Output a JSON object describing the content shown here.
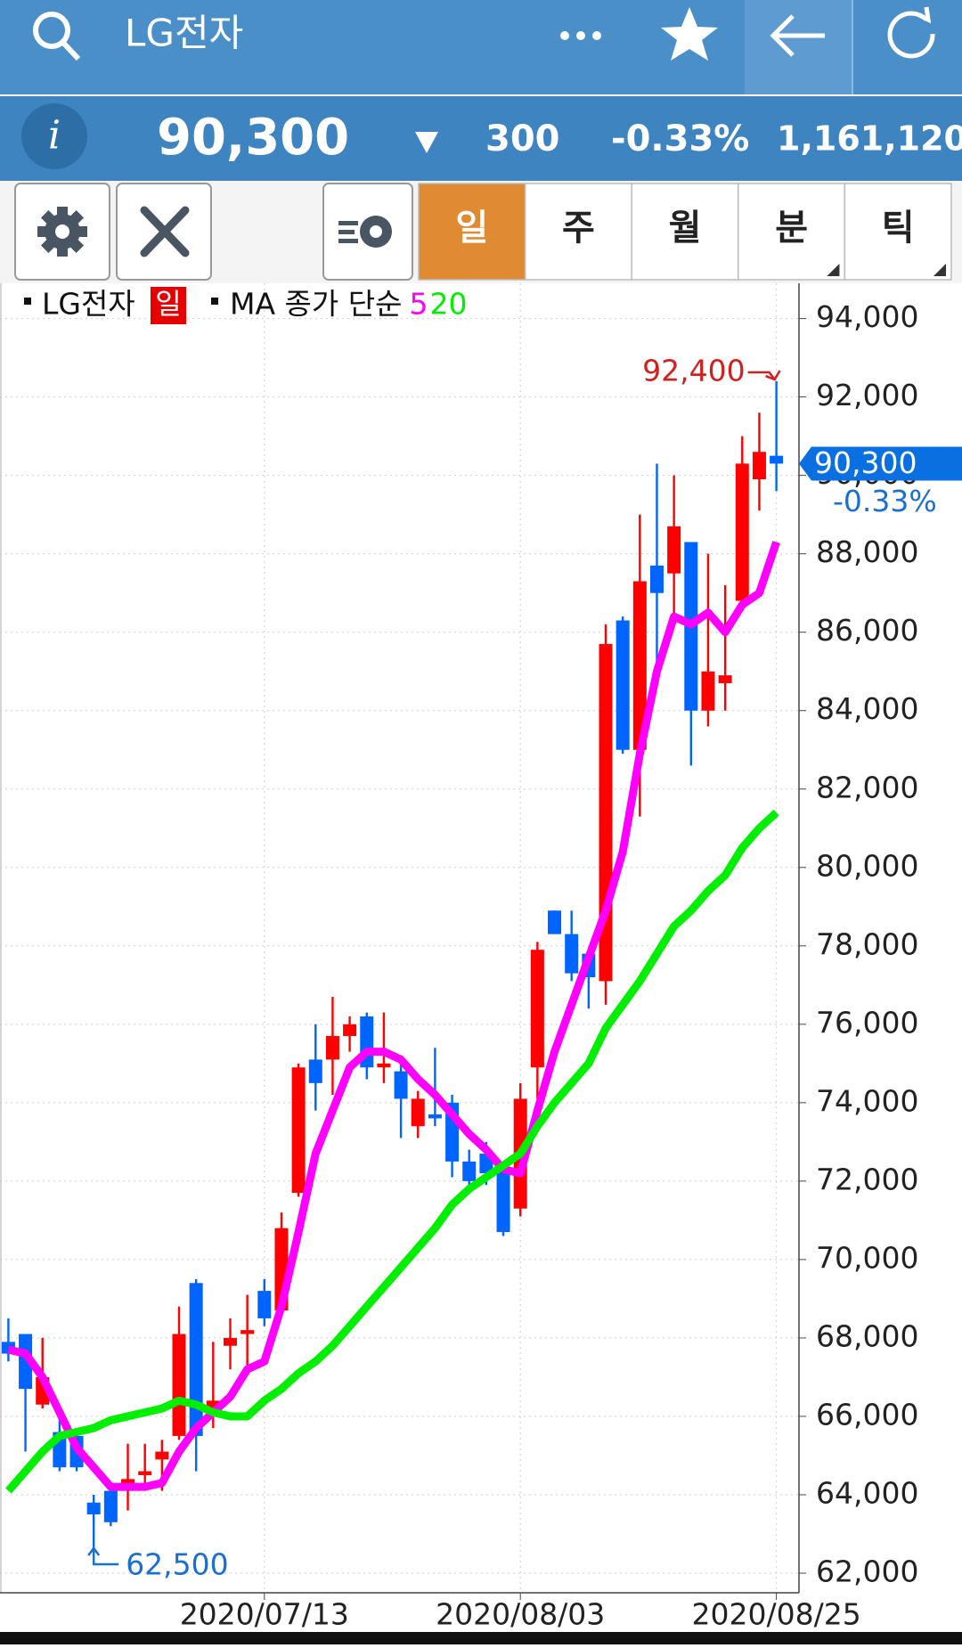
{
  "header": {
    "title": "LG전자"
  },
  "quote": {
    "price": "90,300",
    "change": "300",
    "change_pct": "-0.33%",
    "volume": "1,161,120"
  },
  "tabs": [
    "일",
    "주",
    "월",
    "분",
    "틱"
  ],
  "chart_data": {
    "type": "candlestick",
    "legend_name": "LG전자",
    "period_badge": "일",
    "ma_label": "MA 종가 단순",
    "x": [
      null,
      null,
      null,
      null,
      null,
      null,
      null,
      null,
      null,
      null,
      null,
      null,
      null,
      null,
      null,
      "2020/07/13",
      null,
      null,
      null,
      null,
      null,
      null,
      null,
      null,
      null,
      null,
      null,
      null,
      null,
      null,
      "2020/08/03",
      null,
      null,
      null,
      null,
      null,
      null,
      null,
      null,
      null,
      null,
      null,
      null,
      null,
      null,
      "2020/08/25"
    ],
    "open": [
      67900,
      68100,
      66300,
      65600,
      65500,
      63800,
      64100,
      64100,
      64500,
      64900,
      65500,
      69400,
      66200,
      67800,
      68100,
      69200,
      68700,
      71700,
      75100,
      75100,
      75700,
      76200,
      74900,
      74800,
      73400,
      73700,
      74000,
      72500,
      72700,
      72300,
      71300,
      74900,
      78900,
      78300,
      77800,
      77100,
      86300,
      83000,
      87700,
      87500,
      88300,
      84000,
      84700,
      86800,
      89900,
      90500
    ],
    "high": [
      68500,
      68100,
      68000,
      66000,
      65600,
      64000,
      64100,
      65300,
      65300,
      65400,
      68800,
      69500,
      67900,
      68500,
      69100,
      69500,
      71200,
      75000,
      76000,
      76700,
      76200,
      76300,
      76300,
      75100,
      74300,
      75400,
      74200,
      72800,
      73000,
      72500,
      74500,
      78100,
      78900,
      78900,
      77900,
      86200,
      86400,
      89000,
      90300,
      90000,
      88300,
      88000,
      87200,
      91000,
      91600,
      92400
    ],
    "low": [
      67400,
      65100,
      66200,
      64600,
      64600,
      62500,
      63200,
      63600,
      64100,
      64100,
      65400,
      64600,
      65700,
      67200,
      67300,
      68300,
      68700,
      71600,
      73800,
      74200,
      75300,
      74600,
      74500,
      73100,
      73100,
      73400,
      72100,
      71900,
      71900,
      70600,
      71100,
      74100,
      78300,
      77100,
      76400,
      76500,
      82900,
      81300,
      85000,
      86400,
      82600,
      83600,
      84000,
      86700,
      89100,
      89600
    ],
    "close": [
      67600,
      66700,
      67000,
      64700,
      64700,
      63500,
      63300,
      64400,
      64600,
      65100,
      68100,
      65500,
      66400,
      68000,
      68200,
      68500,
      70800,
      74900,
      74500,
      75700,
      76000,
      74900,
      75000,
      74100,
      74100,
      73600,
      72500,
      72000,
      72200,
      70700,
      74100,
      77900,
      78300,
      77300,
      77200,
      85700,
      83000,
      87300,
      87000,
      88700,
      84000,
      85000,
      84900,
      90300,
      90600,
      90300
    ],
    "up_color": "#ff0000",
    "down_color": "#0064ff",
    "series": [
      {
        "name": "5",
        "color": "#ff00ff",
        "values": [
          67700,
          67600,
          67000,
          66100,
          65200,
          64700,
          64200,
          64200,
          64200,
          64300,
          65100,
          65700,
          66100,
          66500,
          67200,
          67400,
          68800,
          70700,
          72700,
          73800,
          74900,
          75300,
          75300,
          75100,
          74600,
          74200,
          73700,
          73200,
          72800,
          72300,
          72200,
          73800,
          75300,
          76500,
          77700,
          78900,
          80400,
          82900,
          85000,
          86400,
          86200,
          86500,
          86000,
          86700,
          87000,
          88300
        ]
      },
      {
        "name": "20",
        "color": "#00ee00",
        "values": [
          64100,
          64600,
          65100,
          65500,
          65600,
          65700,
          65900,
          66000,
          66100,
          66200,
          66400,
          66300,
          66100,
          66000,
          66000,
          66400,
          66700,
          67100,
          67400,
          67800,
          68300,
          68800,
          69300,
          69800,
          70300,
          70800,
          71400,
          71800,
          72100,
          72400,
          72700,
          73400,
          74000,
          74500,
          75000,
          75900,
          76500,
          77100,
          77800,
          78500,
          78900,
          79400,
          79800,
          80500,
          81000,
          81400
        ]
      }
    ],
    "max_label": {
      "value": 92400,
      "label": "92,400"
    },
    "min_label": {
      "value": 62500,
      "label": "62,500"
    },
    "current": {
      "value": 90300,
      "label": "90,300",
      "change": "-0.33%"
    },
    "ylim": [
      61500,
      94900
    ],
    "yticks": [
      {
        "value": 62000,
        "label": "62,000"
      },
      {
        "value": 64000,
        "label": "64,000"
      },
      {
        "value": 66000,
        "label": "66,000"
      },
      {
        "value": 68000,
        "label": "68,000"
      },
      {
        "value": 70000,
        "label": "70,000"
      },
      {
        "value": 72000,
        "label": "72,000"
      },
      {
        "value": 74000,
        "label": "74,000"
      },
      {
        "value": 76000,
        "label": "76,000"
      },
      {
        "value": 78000,
        "label": "78,000"
      },
      {
        "value": 80000,
        "label": "80,000"
      },
      {
        "value": 82000,
        "label": "82,000"
      },
      {
        "value": 84000,
        "label": "84,000"
      },
      {
        "value": 86000,
        "label": "86,000"
      },
      {
        "value": 88000,
        "label": "88,000"
      },
      {
        "value": 90000,
        "label": "90,000"
      },
      {
        "value": 92000,
        "label": "92,000"
      },
      {
        "value": 94000,
        "label": "94,000"
      }
    ],
    "grid": true
  }
}
